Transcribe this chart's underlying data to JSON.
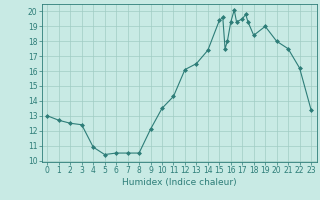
{
  "x": [
    0,
    1,
    2,
    3,
    4,
    5,
    6,
    7,
    8,
    9,
    10,
    11,
    12,
    13,
    14,
    15,
    15.3,
    15.5,
    15.7,
    16,
    16.3,
    16.5,
    17,
    17.3,
    17.5,
    18,
    19,
    20,
    21,
    22,
    23
  ],
  "y": [
    13.0,
    12.7,
    12.5,
    12.4,
    10.9,
    10.4,
    10.5,
    10.5,
    10.5,
    12.1,
    13.5,
    14.3,
    16.1,
    16.5,
    17.4,
    19.4,
    19.6,
    17.5,
    18.0,
    19.3,
    20.1,
    19.3,
    19.5,
    19.8,
    19.3,
    18.4,
    19.0,
    18.0,
    17.5,
    16.2,
    13.4
  ],
  "bg_color": "#c8eae4",
  "line_color": "#2d7d78",
  "marker": "D",
  "markersize": 2,
  "linewidth": 0.8,
  "xlabel": "Humidex (Indice chaleur)",
  "xlim": [
    -0.5,
    23.5
  ],
  "ylim": [
    9.9,
    20.5
  ],
  "yticks": [
    10,
    11,
    12,
    13,
    14,
    15,
    16,
    17,
    18,
    19,
    20
  ],
  "xticks": [
    0,
    1,
    2,
    3,
    4,
    5,
    6,
    7,
    8,
    9,
    10,
    11,
    12,
    13,
    14,
    15,
    16,
    17,
    18,
    19,
    20,
    21,
    22,
    23
  ],
  "grid_color": "#a0ccc4",
  "tick_color": "#2d7d78",
  "label_color": "#2d7d78",
  "tick_fontsize": 5.5,
  "label_fontsize": 6.5
}
